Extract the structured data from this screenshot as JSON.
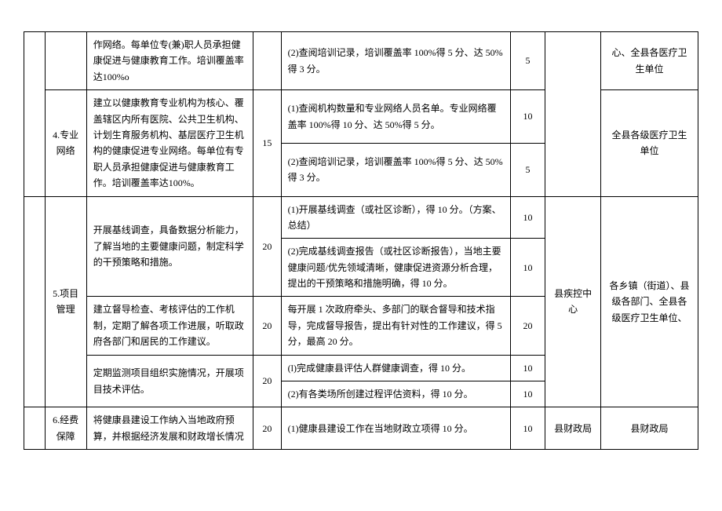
{
  "rows": {
    "r1": {
      "desc": "作网络。每单位专(兼)职人员承担健康促进与健康教育工作。培训覆盖率达100%o",
      "crit": "(2)查阅培训记录，培训覆盖率 100%得 5 分、达 50%得 3 分。",
      "sc2": "5",
      "org2": "心、全县各医疗卫生单位"
    },
    "r2": {
      "cat": "4.专业网络",
      "desc": "建立以健康教育专业机构为核心、覆盖辖区内所有医院、公共卫生机构、计划生育服务机构、基层医疗卫生机构的健康促进专业网络。每单位有专职人员承担健康促进与健康教育工作。培训覆盖率达100%。",
      "sc1": "15",
      "crit_a": "(1)查阅机构数量和专业网络人员名单。专业网络覆盖率 100%得 10 分、达 50%得 5 分。",
      "sc2_a": "10",
      "crit_b": "(2)查阅培训记录，培训覆盖率 100%得 5 分、达 50%得 3 分。",
      "sc2_b": "5",
      "org2": "全县各级医疗卫生单位"
    },
    "r3": {
      "cat": "5.项目管理",
      "desc_a": "开展基线调查，具备数据分析能力，了解当地的主要健康问题，制定科学的干预策略和措施。",
      "sc1_a": "20",
      "crit_a1": "(1)开展基线调查（或社区诊断），得 10 分。（方案、总结）",
      "sc2_a1": "10",
      "crit_a2": "(2)完成基线调查报告（或社区诊断报告），当地主要健康问题/优先领域清晰，健康促进资源分析合理，提出的干预策略和措施明确，得 10 分。",
      "sc2_a2": "10",
      "desc_b": "建立督导检查、考核评估的工作机制，定期了解各项工作进展，听取政府各部门和居民的工作建议。",
      "sc1_b": "20",
      "crit_b": "每开展 1 次政府牵头、多部门的联合督导和技术指导，完成督导报告，提出有针对性的工作建议，得 5 分，最高 20 分。",
      "sc2_b": "20",
      "desc_c": "定期监测项目组织实施情况，开展项目技术评估。",
      "sc1_c": "20",
      "crit_c1": "(l)完成健康县评估人群健康调查，得 10 分。",
      "sc2_c1": "10",
      "crit_c2": "(2)有各类场所创建过程评估资料，得 10 分。",
      "sc2_c2": "10",
      "org1": "县疾控中心",
      "org2": "各乡镇（街道）、县级各部门、全县各级医疗卫生单位、"
    },
    "r4": {
      "cat": "6.经费保障",
      "desc": "将健康县建设工作纳入当地政府预算，并根据经济发展和财政增长情况",
      "sc1": "20",
      "crit": "(1)健康县建设工作在当地财政立项得 10 分。",
      "sc2": "10",
      "org1": "县财政局",
      "org2": "县财政局"
    }
  }
}
